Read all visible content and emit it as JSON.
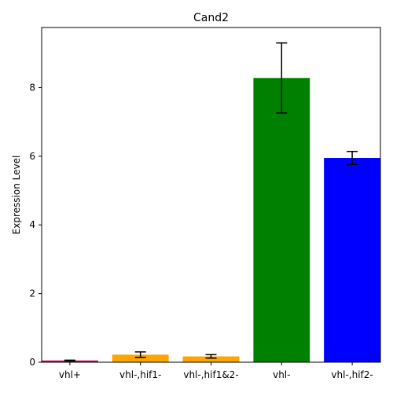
{
  "chart_data": {
    "type": "bar",
    "title": "Cand2",
    "xlabel": "",
    "ylabel": "Expression Level",
    "categories": [
      "vhl+",
      "vhl-,hif1-",
      "vhl-,hif1&2-",
      "vhl-",
      "vhl-,hif2-"
    ],
    "values": [
      0.05,
      0.22,
      0.17,
      8.28,
      5.95
    ],
    "errors": [
      0.01,
      0.08,
      0.05,
      1.02,
      0.19
    ],
    "colors": [
      "#cc0066",
      "#ffa500",
      "#ffa500",
      "#008000",
      "#0000ff"
    ],
    "ylim": [
      0,
      9.75
    ],
    "yticks": [
      0,
      2,
      4,
      6,
      8
    ],
    "grid": false,
    "legend": "none"
  }
}
